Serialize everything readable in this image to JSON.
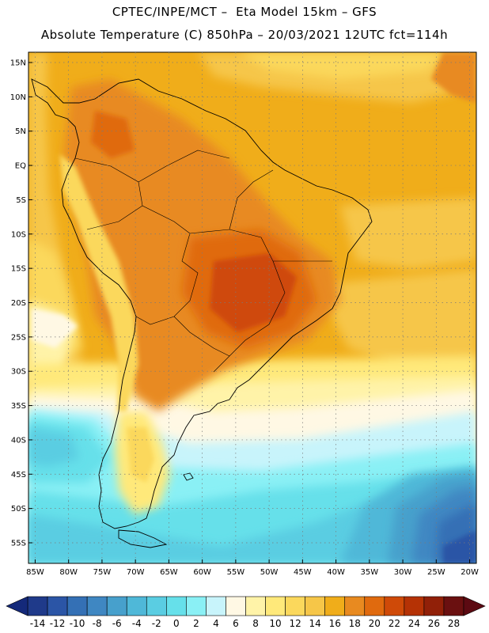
{
  "header": {
    "line1": "CPTEC/INPE/MCT –  Eta Model 15km – GFS",
    "line2": "Absolute Temperature (C) 850hPa – 20/03/2021 12UTC fct=114h"
  },
  "map": {
    "lat_labels": [
      "15N",
      "10N",
      "5N",
      "EQ",
      "5S",
      "10S",
      "15S",
      "20S",
      "25S",
      "30S",
      "35S",
      "40S",
      "45S",
      "50S",
      "55S"
    ],
    "lon_labels": [
      "85W",
      "80W",
      "75W",
      "70W",
      "65W",
      "60W",
      "55W",
      "50W",
      "45W",
      "40W",
      "35W",
      "30W",
      "25W",
      "20W"
    ],
    "lon_range": [
      -86,
      -19
    ],
    "lat_range": [
      -58,
      16.5
    ]
  },
  "colorbar": {
    "labels": [
      "-14",
      "-12",
      "-10",
      "-8",
      "-6",
      "-4",
      "-2",
      "0",
      "2",
      "4",
      "6",
      "8",
      "10",
      "12",
      "14",
      "16",
      "18",
      "20",
      "22",
      "24",
      "26",
      "28"
    ],
    "colors": [
      "#1f3a8a",
      "#2b55a6",
      "#3470b5",
      "#3f87c2",
      "#47a0cc",
      "#4fb8d8",
      "#5acde2",
      "#66e0ea",
      "#8af0f5",
      "#c8f4fb",
      "#fff8e4",
      "#fff3a8",
      "#ffe97a",
      "#fbd85c",
      "#f6c648",
      "#f0ad1a",
      "#e88a20",
      "#e06a0e",
      "#cf4a08",
      "#b53205",
      "#912008",
      "#6a1010"
    ],
    "min_color": "#14297a",
    "max_color": "#5c0a12"
  }
}
